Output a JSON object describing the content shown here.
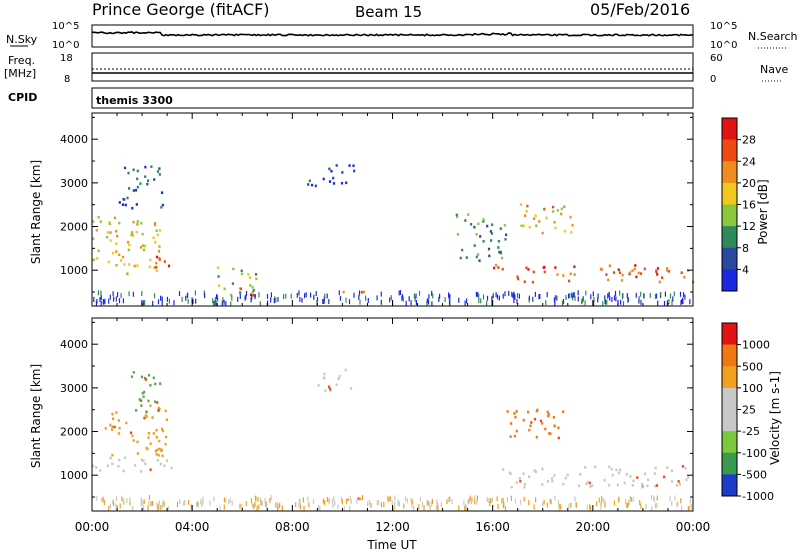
{
  "header": {
    "station": "Prince George (fitACF)",
    "beam": "Beam 15",
    "date": "05/Feb/2016"
  },
  "top_panels": {
    "nsky_label": "N.Sky",
    "nsky_ticks": [
      "10^5",
      "10^0"
    ],
    "nsearch_label": "N.Search",
    "freq_label_top": "Freq.",
    "freq_label_unit": "[MHz]",
    "freq_ticks": [
      "18",
      "8"
    ],
    "nave_label": "Nave",
    "nave_ticks": [
      "60",
      "0"
    ],
    "cpid_label": "CPID",
    "cpid_value": "themis 3300"
  },
  "chart_data": [
    {
      "type": "heatmap",
      "title": "",
      "xlabel": "Time UT",
      "ylabel": "Slant Range [km]",
      "x_ticks": [
        "00:00",
        "04:00",
        "08:00",
        "12:00",
        "16:00",
        "20:00",
        "00:00"
      ],
      "x_range_hours": [
        0,
        24
      ],
      "y_ticks": [
        1000,
        2000,
        3000,
        4000
      ],
      "ylim": [
        180,
        4600
      ],
      "colorbar": {
        "label": "Power [dB]",
        "ticks": [
          4,
          8,
          12,
          16,
          20,
          24,
          28
        ],
        "range": [
          0,
          32
        ],
        "colors": [
          "#1c28e0",
          "#2a4aa0",
          "#2e8a5a",
          "#8cc63c",
          "#f0c81e",
          "#f08c1e",
          "#f04a14",
          "#e01414"
        ]
      },
      "regions": [
        {
          "t": [
            0.0,
            2.8
          ],
          "r": [
            900,
            2200
          ],
          "level": 18
        },
        {
          "t": [
            2.5,
            3.2
          ],
          "r": [
            900,
            1400
          ],
          "level": 26
        },
        {
          "t": [
            1.0,
            2.8
          ],
          "r": [
            2400,
            3400
          ],
          "level": 6
        },
        {
          "t": [
            4.8,
            6.6
          ],
          "r": [
            400,
            1100
          ],
          "level": 14
        },
        {
          "t": [
            5.5,
            6.5
          ],
          "r": [
            400,
            600
          ],
          "level": 24
        },
        {
          "t": [
            9.0,
            11.0
          ],
          "r": [
            400,
            500
          ],
          "level": 24
        },
        {
          "t": [
            8.5,
            10.5
          ],
          "r": [
            2900,
            3400
          ],
          "level": 5
        },
        {
          "t": [
            16.0,
            24.0
          ],
          "r": [
            700,
            1100
          ],
          "level": 26
        },
        {
          "t": [
            17.0,
            19.2
          ],
          "r": [
            1800,
            2500
          ],
          "level": 20
        },
        {
          "t": [
            14.5,
            16.5
          ],
          "r": [
            1200,
            2300
          ],
          "level": 10
        }
      ]
    },
    {
      "type": "heatmap",
      "title": "",
      "xlabel": "Time UT",
      "ylabel": "Slant Range [km]",
      "x_ticks": [
        "00:00",
        "04:00",
        "08:00",
        "12:00",
        "16:00",
        "20:00",
        "00:00"
      ],
      "x_range_hours": [
        0,
        24
      ],
      "y_ticks": [
        1000,
        2000,
        3000,
        4000
      ],
      "ylim": [
        180,
        4600
      ],
      "colorbar": {
        "label": "Velocity [m s-1]",
        "ticks": [
          "1000",
          "500",
          "100",
          "25",
          "-25",
          "-100",
          "-500",
          "-1000"
        ],
        "colors": [
          "#1c3cc8",
          "#3a9a50",
          "#7ac83c",
          "#c8c8c8",
          "#c8c8c8",
          "#f0a01e",
          "#f07814",
          "#e01414"
        ]
      },
      "regions": [
        {
          "t": [
            0.0,
            3.2
          ],
          "r": [
            1000,
            1400
          ],
          "class": "ground"
        },
        {
          "t": [
            0.5,
            3.0
          ],
          "r": [
            1400,
            2600
          ],
          "class": "neg_slow"
        },
        {
          "t": [
            1.5,
            2.8
          ],
          "r": [
            2400,
            3400
          ],
          "class": "pos_mid"
        },
        {
          "t": [
            16.5,
            18.8
          ],
          "r": [
            1700,
            2500
          ],
          "class": "neg_fast"
        },
        {
          "t": [
            16.0,
            24.0
          ],
          "r": [
            700,
            1200
          ],
          "class": "ground"
        },
        {
          "t": [
            9.0,
            11.0
          ],
          "r": [
            400,
            500
          ],
          "class": "neg_slow"
        },
        {
          "t": [
            9.0,
            10.5
          ],
          "r": [
            2900,
            3400
          ],
          "class": "ground"
        }
      ]
    }
  ]
}
